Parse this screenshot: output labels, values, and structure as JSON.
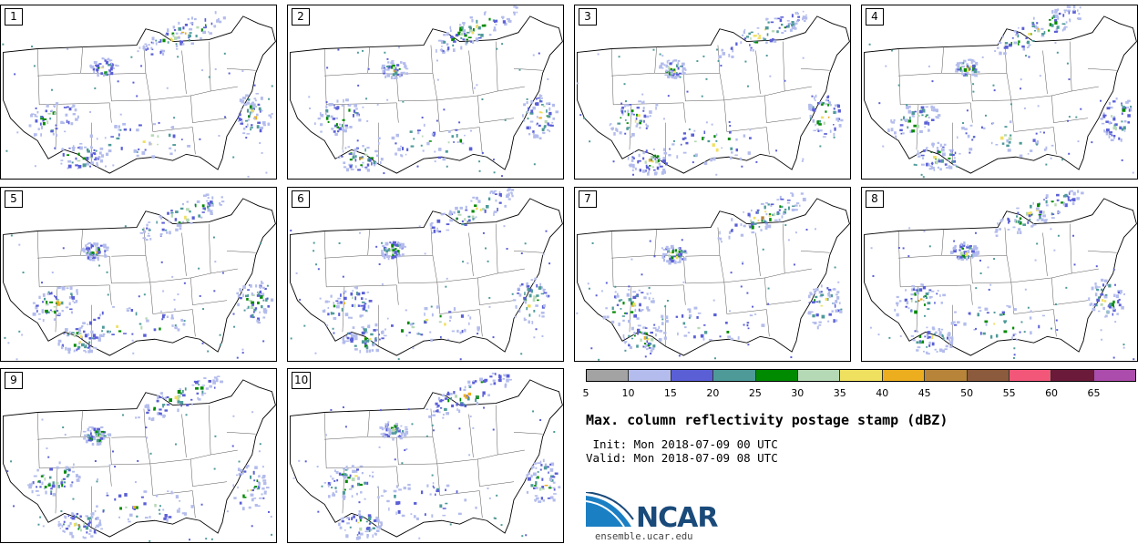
{
  "panels": [
    {
      "label": "1"
    },
    {
      "label": "2"
    },
    {
      "label": "3"
    },
    {
      "label": "4"
    },
    {
      "label": "5"
    },
    {
      "label": "6"
    },
    {
      "label": "7"
    },
    {
      "label": "8"
    },
    {
      "label": "9"
    },
    {
      "label": "10"
    }
  ],
  "colorbar": {
    "colors": [
      "#a3a3a3",
      "#b3bcec",
      "#5a5fd6",
      "#4e9a99",
      "#008a00",
      "#b6d9b5",
      "#f0e060",
      "#ecae1e",
      "#b7843a",
      "#8c5a3c",
      "#f2577a",
      "#6b1a3a",
      "#ac4cac"
    ],
    "ticks": [
      "5",
      "10",
      "15",
      "20",
      "25",
      "30",
      "35",
      "40",
      "45",
      "50",
      "55",
      "60",
      "65"
    ]
  },
  "title": "Max. column reflectivity postage stamp (dBZ)",
  "init": " Init: Mon 2018-07-09 00 UTC",
  "valid": "Valid: Mon 2018-07-09 08 UTC",
  "logo": {
    "text": "NCAR",
    "site": "ensemble.ucar.edu"
  }
}
